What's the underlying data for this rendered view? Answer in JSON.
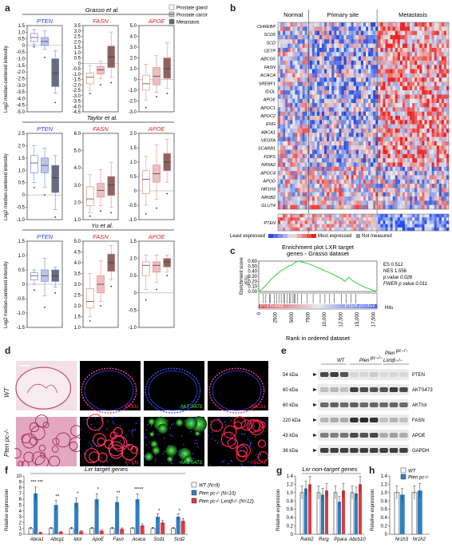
{
  "panel_a": {
    "label": "a",
    "ylabel": "Log2 median-centered intensity",
    "legend": [
      "Prostate gland",
      "Prostate carcinoma",
      "Metastasis"
    ],
    "datasets": [
      "Grasso et al.",
      "Taylor et al.",
      "Yu et al."
    ],
    "genes": [
      "PTEN",
      "FASN",
      "APOE"
    ],
    "rows": [
      [
        {
          "ticks": [
            "1.5",
            "1.0",
            "0.5",
            "0",
            "-0.5",
            "-1.0",
            "-1.5",
            "-2.0",
            "-2.5",
            "-3.0",
            "-3.5",
            "-4.0",
            "-4.5",
            "-5.0"
          ],
          "ymin": -5,
          "ymax": 1.5
        },
        {
          "ticks": [
            "3.5",
            "3.0",
            "2.5",
            "2.0",
            "1.5",
            "1.0",
            "0.5",
            "0",
            "-0.5",
            "-1.0",
            "-1.5",
            "-2.0",
            "-2.5",
            "-3.0",
            "-3.5",
            "-4.0",
            "-4.5"
          ],
          "ymin": -4.5,
          "ymax": 3.5
        },
        {
          "ticks": [
            "5.0",
            "4.0",
            "3.0",
            "2.0",
            "1.0",
            "0",
            "-1.0",
            "-2.0",
            "-3.0"
          ],
          "ymin": -3,
          "ymax": 5
        }
      ],
      [
        {
          "ticks": [
            "2.5",
            "2.0",
            "1.5",
            "1.0",
            "0.5",
            "0",
            "-0.5",
            "-1.0"
          ],
          "ymin": -1,
          "ymax": 2.5
        },
        {
          "ticks": [
            "6.0",
            "5.0",
            "4.0",
            "3.0",
            "2.0",
            "1.0"
          ],
          "ymin": 1,
          "ymax": 6
        },
        {
          "ticks": [
            "2.0",
            "1.5",
            "1.0",
            "0.5",
            "0",
            "-0.5",
            "-1.0"
          ],
          "ymin": -1,
          "ymax": 2
        }
      ],
      [
        {
          "ticks": [
            "1.5",
            "1.0",
            "0.5",
            "0",
            "-0.5",
            "-1.0",
            "-1.5"
          ],
          "ymin": -1.5,
          "ymax": 1.5
        },
        {
          "ticks": [
            "5.0",
            "4.5",
            "4.0",
            "3.5",
            "3.0",
            "2.5",
            "2.0",
            "1.5",
            "1.0"
          ],
          "ymin": 1,
          "ymax": 5
        },
        {
          "ticks": [
            "1.5",
            "1.0",
            "0.5",
            "0",
            "-0.5",
            "-1.0"
          ],
          "ymin": -1,
          "ymax": 1.5
        }
      ]
    ],
    "boxes": [
      [
        [
          [
            0.6,
            0.3,
            0.9,
            0.05,
            1.2,
            -0.1
          ],
          [
            0.3,
            0,
            0.6,
            -0.3,
            1.1,
            -0.9
          ],
          [
            -2.1,
            -3.1,
            -1.0,
            -3.6,
            -0.4,
            -4.3
          ]
        ],
        [
          [
            -1.3,
            -1.9,
            -0.9,
            -2.5,
            -0.2,
            -2.8
          ],
          [
            -0.6,
            -1.0,
            -0.3,
            -1.4,
            0.2,
            -2.0
          ],
          [
            0.6,
            -0.4,
            1.6,
            -1.3,
            2.9,
            -1.8
          ]
        ],
        [
          [
            -0.4,
            -1.0,
            0.4,
            -1.9,
            1.4,
            -2.6
          ],
          [
            0.3,
            -0.5,
            1.1,
            -1.2,
            2.2,
            -1.6
          ],
          [
            1.0,
            0.1,
            2.0,
            -0.8,
            3.4,
            -1.3
          ]
        ]
      ],
      [
        [
          [
            1.3,
            0.9,
            1.6,
            0.5,
            2.0,
            0.3
          ],
          [
            1.2,
            0.9,
            1.5,
            0.3,
            1.9,
            0
          ],
          [
            0.7,
            0.1,
            1.2,
            -0.6,
            1.6,
            -0.9
          ]
        ],
        [
          [
            2.2,
            1.8,
            2.9,
            1.4,
            3.6,
            1.2
          ],
          [
            2.7,
            2.3,
            3.1,
            1.8,
            3.9,
            1.5
          ],
          [
            3.0,
            2.4,
            3.5,
            1.7,
            4.3,
            1.4
          ]
        ],
        [
          [
            0.4,
            -0.1,
            0.7,
            -0.5,
            1.2,
            -0.8
          ],
          [
            0.6,
            0.3,
            0.9,
            -0.3,
            1.6,
            -0.6
          ],
          [
            1.0,
            0.7,
            1.3,
            0.3,
            1.8,
            -0.1
          ]
        ]
      ],
      [
        [
          [
            0.3,
            0.15,
            0.4,
            0,
            0.5,
            -0.2
          ],
          [
            0.3,
            0.1,
            0.5,
            -0.4,
            0.9,
            -0.8
          ],
          [
            0.3,
            0.1,
            0.5,
            -0.1,
            0.6,
            -0.3
          ]
        ],
        [
          [
            2.2,
            1.9,
            2.8,
            1.5,
            3.5,
            1.3
          ],
          [
            3.0,
            2.6,
            3.4,
            2.2,
            4.1,
            2.0
          ],
          [
            4.0,
            3.6,
            4.4,
            3.2,
            4.8,
            2.9
          ]
        ],
        [
          [
            0.8,
            0.5,
            0.9,
            0.1,
            1.1,
            -0.2
          ],
          [
            0.8,
            0.6,
            0.9,
            0.3,
            1.1,
            0.1
          ],
          [
            0.9,
            0.75,
            1.0,
            0.6,
            1.1,
            0.5
          ]
        ]
      ]
    ]
  },
  "panel_b": {
    "label": "b",
    "groups": [
      "Normal",
      "Primary site",
      "Metastasis"
    ],
    "genes": [
      "CHREBP",
      "SCD5",
      "SCD",
      "CETP",
      "ABCG5",
      "FASN",
      "ACACA",
      "SREBF1",
      "IDOL",
      "APOE",
      "APOC1",
      "APOC2",
      "ENG",
      "ABCA1",
      "VEGFA",
      "SCARB1",
      "FDPS",
      "NR5A2",
      "APOC4",
      "APOD",
      "NR1H3",
      "NR0B2",
      "GLUT4"
    ],
    "pten_label": "PTEN",
    "legend_least": "Least expressed",
    "legend_most": "Most expressed",
    "legend_nm": "Not measured"
  },
  "panel_c": {
    "label": "c",
    "title": "Enrichment plot LXR target genes - Grasso dataset",
    "ylabel": "Enrichment score (ES)",
    "yticks": [
      "0.60",
      "0.55",
      "0.50",
      "0.45",
      "0.40",
      "0.35",
      "0.30",
      "0.25",
      "0.20",
      "0.15",
      "0.10",
      "0.05",
      "0.00"
    ],
    "xticks": [
      "0",
      "2500",
      "5000",
      "7500",
      "10,000",
      "12,500",
      "15,000",
      "17,500"
    ],
    "xlabel": "Rank in ordered dataset",
    "hits_label": "Hits",
    "bar_left": "PTEN-loss",
    "bar_right": "PTEN-positive",
    "stats": [
      "ES 0.512",
      "NES 1.556",
      "p value 0.026",
      "FWER p value 0.011"
    ]
  },
  "panel_d": {
    "label": "d",
    "row_labels": [
      "WT",
      "Pten pc-/-"
    ],
    "stains": [
      "PTEN",
      "AKT S473",
      "ABCA1"
    ]
  },
  "panel_e": {
    "label": "e",
    "col_labels": [
      "WT",
      "Pten pc-/-",
      "Pten pc-/- Lxrαβ-/-"
    ],
    "mw": [
      "54 kDa",
      "60 kDa",
      "60 kDa",
      "220 kDa",
      "43 kDa",
      "36 kDa"
    ],
    "bands": [
      "PTEN",
      "AKTS473",
      "AKTtot",
      "FASN",
      "APOE",
      "GAPDH"
    ]
  },
  "panel_f": {
    "label": "f",
    "title": "Lxr target genes",
    "ylabel": "Relative expression",
    "yticks": [
      "10",
      "9",
      "8",
      "7",
      "6",
      "5",
      "4",
      "3",
      "2",
      "1",
      "0"
    ],
    "categories": [
      "Abca1",
      "Abcg1",
      "Idol",
      "ApoE",
      "Fasn",
      "Acaca",
      "Scd1",
      "Scd2"
    ],
    "legend": [
      "WT (N=9)",
      "Pten pc-/- (N=10)",
      "Pten pc-/- Lxrαβ-/- (N=12)"
    ],
    "series": [
      [
        1,
        1,
        1,
        1,
        1,
        1,
        1,
        1
      ],
      [
        7,
        5,
        5.4,
        6,
        5.5,
        6,
        3,
        3
      ],
      [
        0.3,
        0.4,
        0.5,
        0.6,
        0.9,
        1.5,
        2,
        2.3
      ]
    ],
    "stars": [
      "*** ***",
      "**",
      "*",
      "*",
      "**",
      "*****",
      "*",
      "*"
    ]
  },
  "panel_g": {
    "label": "g",
    "title": "Lxr non-target genes",
    "ylabel": "Relative expression",
    "yticks": [
      "1.4",
      "1.2",
      "1.0",
      "0.8",
      "0.6",
      "0.4",
      "0.2",
      "0"
    ],
    "categories": [
      "Rarb2",
      "Rxrg",
      "Ppara",
      "Abcb10"
    ],
    "series": [
      [
        1,
        1,
        1,
        1
      ],
      [
        1.1,
        0.95,
        0.78,
        0.98
      ],
      [
        1.2,
        1.05,
        1.05,
        1.2
      ]
    ]
  },
  "panel_h": {
    "label": "h",
    "ylabel": "Relative expression",
    "yticks": [
      "1.4",
      "1.2",
      "1.0",
      "0.8",
      "0.6",
      "0.4",
      "0.2",
      "0"
    ],
    "categories": [
      "Nr1h3",
      "Nr1h2"
    ],
    "legend": [
      "WT",
      "Pten pc-/-"
    ],
    "series": [
      [
        1,
        1
      ],
      [
        0.95,
        1.05
      ]
    ]
  },
  "colors": {
    "wt": "#ffffff",
    "pten": "#2f7fc4",
    "ptenlxr": "#e23b3b",
    "blue_gene": "#2a3ee0",
    "red_gene": "#e0202a",
    "box_light": "#f6d7d7",
    "box_mid": "#bdbdbd",
    "box_dark": "#6e6e6e"
  }
}
